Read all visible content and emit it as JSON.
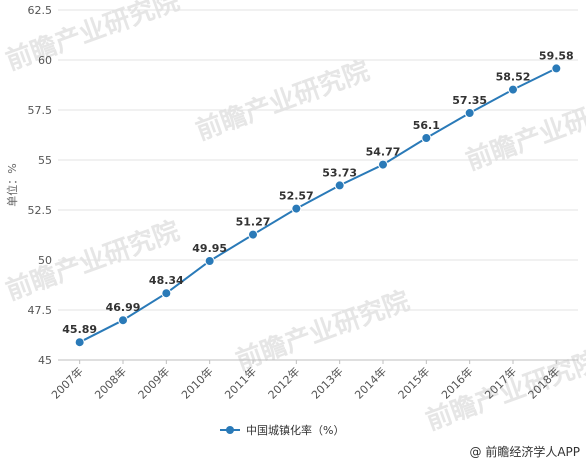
{
  "chart_data": {
    "type": "line",
    "categories": [
      "2007年",
      "2008年",
      "2009年",
      "2010年",
      "2011年",
      "2012年",
      "2013年",
      "2014年",
      "2015年",
      "2016年",
      "2017年",
      "2018年"
    ],
    "series": [
      {
        "name": "中国城镇化率（%）",
        "values": [
          45.89,
          46.99,
          48.34,
          49.95,
          51.27,
          52.57,
          53.73,
          54.77,
          56.1,
          57.35,
          58.52,
          59.58
        ]
      }
    ],
    "data_labels": [
      "45.89",
      "46.99",
      "48.34",
      "49.95",
      "51.27",
      "52.57",
      "53.73",
      "54.77",
      "56.1",
      "57.35",
      "58.52",
      "59.58"
    ],
    "yticks": [
      "45",
      "47.5",
      "50",
      "52.5",
      "55",
      "57.5",
      "60",
      "62.5"
    ],
    "ylim": [
      45,
      62.5
    ],
    "ylabel": "单位：%",
    "xlabel": "",
    "grid": true,
    "legend_position": "bottom",
    "color": "#2a7ab8"
  },
  "watermark": "前瞻产业研究院",
  "source": "@ 前瞻经济学人APP"
}
